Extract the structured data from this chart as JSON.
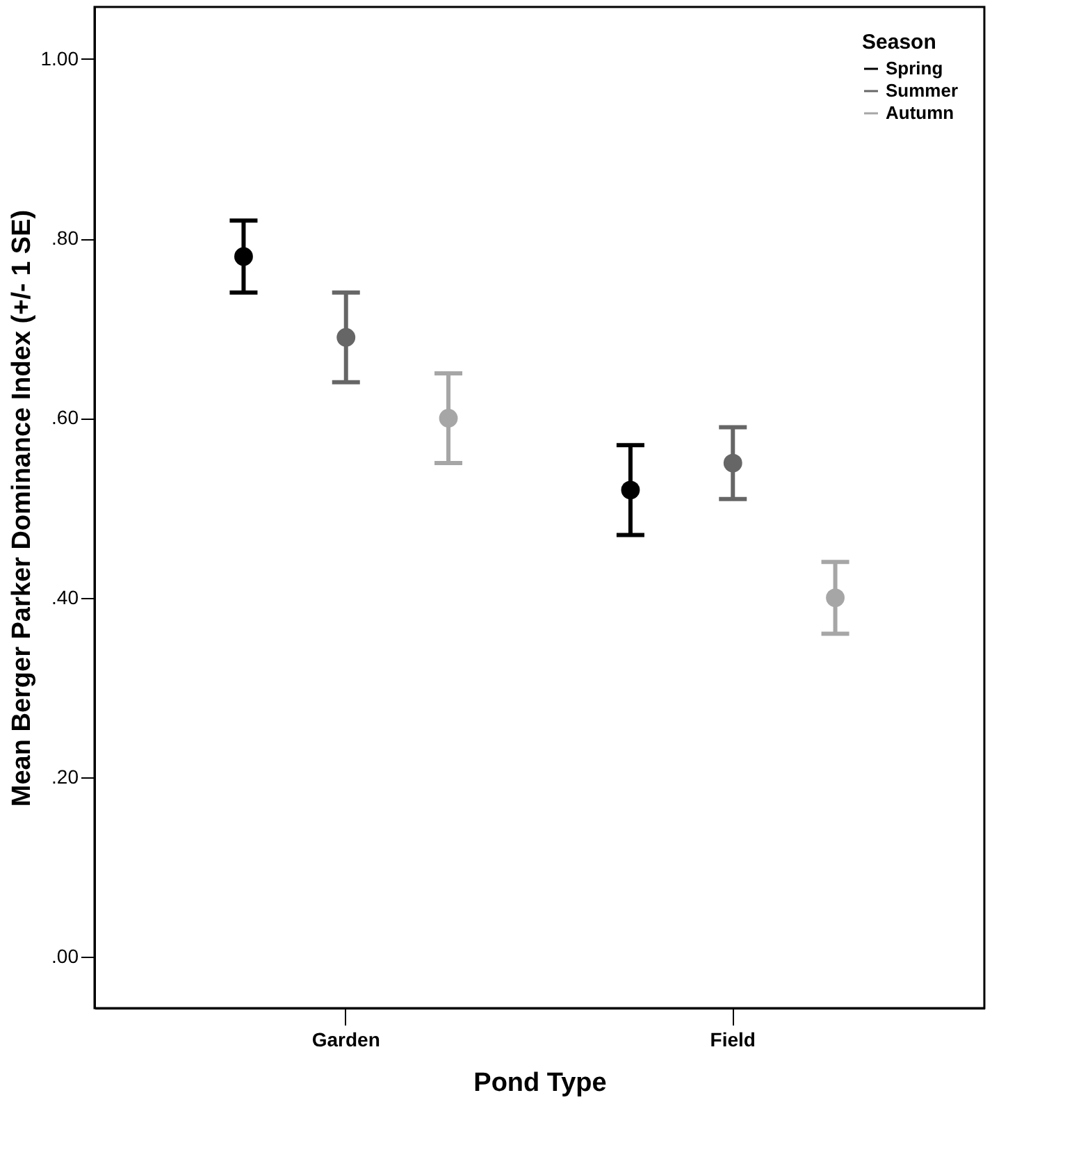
{
  "chart_data": {
    "type": "scatter",
    "xlabel": "Pond Type",
    "ylabel": "Mean Berger Parker Dominance Index (+/- 1 SE)",
    "legend_title": "Season",
    "categories": [
      "Garden",
      "Field"
    ],
    "series": [
      {
        "name": "Spring",
        "color": "#000000",
        "values": [
          0.78,
          0.52
        ],
        "errors": [
          [
            0.74,
            0.82
          ],
          [
            0.47,
            0.57
          ]
        ]
      },
      {
        "name": "Summer",
        "color": "#666666",
        "values": [
          0.69,
          0.55
        ],
        "errors": [
          [
            0.64,
            0.74
          ],
          [
            0.51,
            0.59
          ]
        ]
      },
      {
        "name": "Autumn",
        "color": "#a6a6a6",
        "values": [
          0.6,
          0.4
        ],
        "errors": [
          [
            0.55,
            0.65
          ],
          [
            0.36,
            0.44
          ]
        ]
      }
    ],
    "ylim": [
      -0.057,
      1.058
    ],
    "yticks": [
      {
        "value": 0,
        "label": ".00"
      },
      {
        "value": 0.2,
        "label": ".20"
      },
      {
        "value": 0.4,
        "label": ".40"
      },
      {
        "value": 0.6,
        "label": ".60"
      },
      {
        "value": 0.8,
        "label": ".80"
      },
      {
        "value": 1,
        "label": "1.00"
      }
    ],
    "grid": false,
    "legend": "top right",
    "marker": "circle"
  }
}
